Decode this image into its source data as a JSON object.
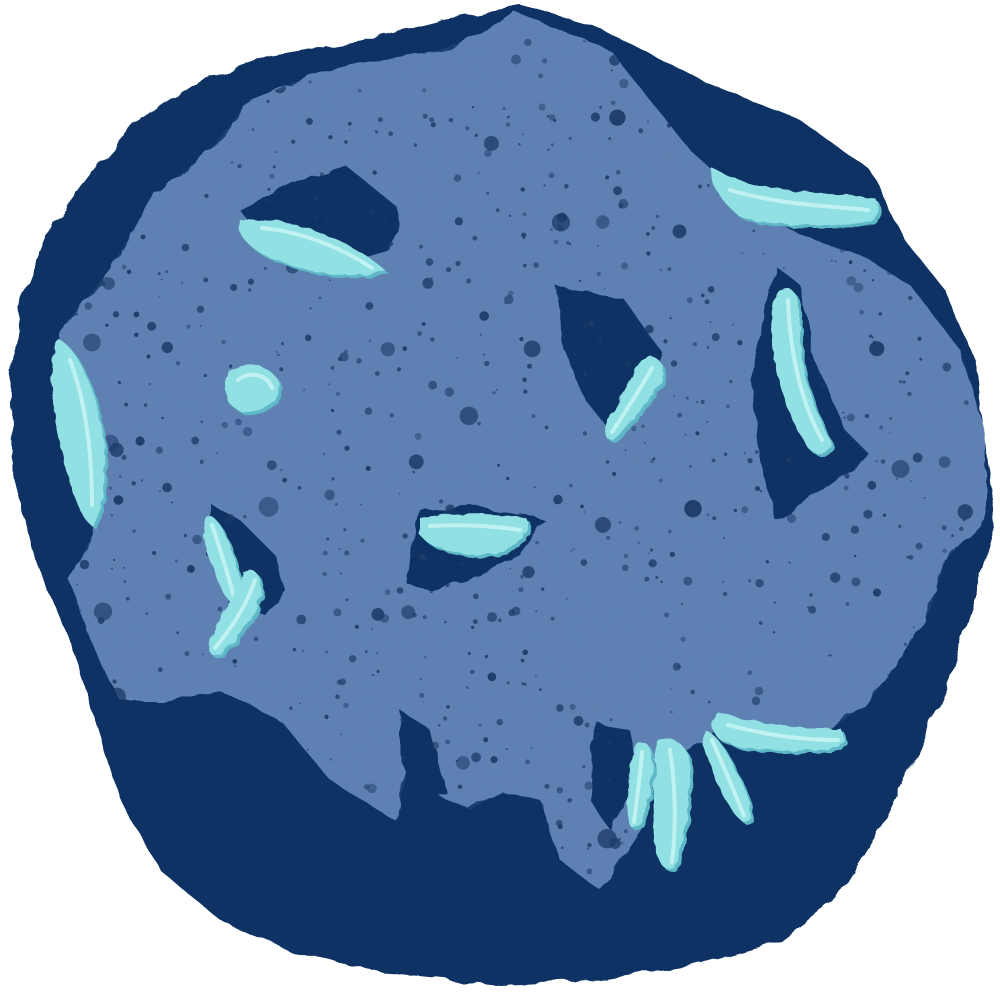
{
  "artwork": {
    "subject": "rock-texture",
    "colors": {
      "background": "#ffffff",
      "outer_rock": "#0f3263",
      "rock_face": "#5f82b5",
      "speckle": "#1c3b69",
      "crystal": "#90e0e4",
      "crystal_highlight": "#c9f4f3",
      "crystal_shadow": "#5fb8c7"
    }
  }
}
